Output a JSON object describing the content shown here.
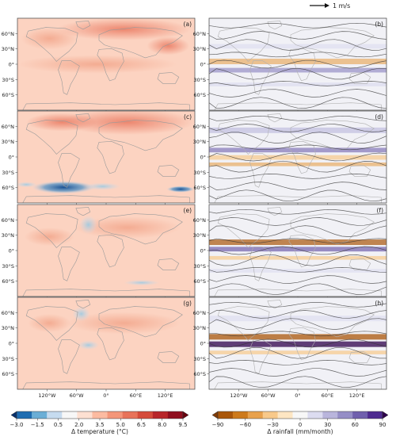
{
  "figure": {
    "wind_scale_label": "1 m/s",
    "lat_ticks": [
      "60°N",
      "30°N",
      "0°",
      "30°S",
      "60°S"
    ],
    "lon_ticks": [
      "120°W",
      "60°W",
      "0°",
      "60°E",
      "120°E"
    ],
    "panels": [
      {
        "label": "(a)",
        "field": "temperature"
      },
      {
        "label": "(b)",
        "field": "rainfall"
      },
      {
        "label": "(c)",
        "field": "temperature"
      },
      {
        "label": "(d)",
        "field": "rainfall"
      },
      {
        "label": "(e)",
        "field": "temperature"
      },
      {
        "label": "(f)",
        "field": "rainfall"
      },
      {
        "label": "(g)",
        "field": "temperature"
      },
      {
        "label": "(h)",
        "field": "rainfall"
      }
    ],
    "colorbars": {
      "temperature": {
        "label": "Δ temperature (°C)",
        "ticks": [
          "−3.0",
          "−1.5",
          "0.5",
          "2.0",
          "3.5",
          "5.0",
          "6.5",
          "8.0",
          "9.5"
        ],
        "colors": [
          "#08306b",
          "#1f6db1",
          "#6baed6",
          "#c6dbef",
          "#f7f7f7",
          "#fde0d2",
          "#fcbba1",
          "#f4967a",
          "#e8735a",
          "#d54c3b",
          "#b8262a",
          "#8f0f1f",
          "#67000d"
        ]
      },
      "rainfall": {
        "label": "Δ rainfall (mm/month)",
        "ticks": [
          "−90",
          "−60",
          "−30",
          "0",
          "30",
          "60",
          "90"
        ],
        "colors": [
          "#7f3b08",
          "#a9560a",
          "#cd7a1c",
          "#e8a14d",
          "#f8c98a",
          "#fde6c3",
          "#f7f7f7",
          "#dcdcf0",
          "#b9b5dc",
          "#958ec6",
          "#7060ad",
          "#4e2b8f",
          "#2d004b"
        ]
      }
    }
  }
}
